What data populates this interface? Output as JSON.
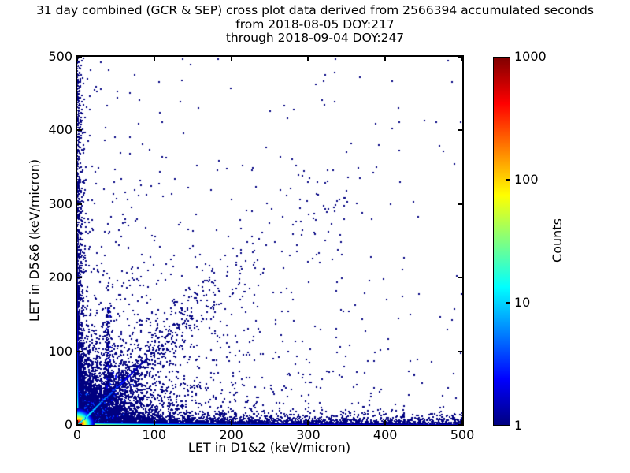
{
  "header": {
    "title_line1": "31 day combined (GCR & SEP) cross plot data derived from 2566394 accumulated seconds",
    "title_line2": "from 2018-08-05 DOY:217",
    "title_line3": "through 2018-09-04 DOY:247",
    "accumulated_seconds": 2566394,
    "period": {
      "from": "2018-08-05",
      "from_doy": 217,
      "through": "2018-09-04",
      "through_doy": 247
    }
  },
  "chart_data": {
    "type": "heatmap",
    "subtype": "2d-histogram cross plot rendered as colored 1-unit bins",
    "xlabel": "LET in D1&2 (keV/micron)",
    "ylabel": "LET in D5&6 (keV/micron)",
    "xlim": [
      0,
      500
    ],
    "ylim": [
      0,
      500
    ],
    "xticks": [
      0,
      100,
      200,
      300,
      400,
      500
    ],
    "yticks": [
      0,
      100,
      200,
      300,
      400,
      500
    ],
    "grid": false,
    "point_color_single_count": "#000080",
    "colorbar": {
      "label": "Counts",
      "scale": "log",
      "ticks": [
        1,
        10,
        100,
        1000
      ],
      "range": [
        1,
        1000
      ],
      "colormap": "jet",
      "stops_bottom_to_top": [
        "#000080",
        "#0000ff",
        "#0080ff",
        "#00ffff",
        "#80ff80",
        "#ffff00",
        "#ff8000",
        "#ff0000",
        "#800000"
      ]
    },
    "density_model": {
      "seed": 7,
      "bin_units": 1,
      "origin_blob": {
        "peak_counts": 1500,
        "radial_scale": 3.0,
        "extent": 26
      },
      "bottom_band": {
        "terms": [
          [
            700,
            5
          ],
          [
            45,
            55
          ],
          [
            4,
            250
          ]
        ],
        "baseline": 0.9,
        "rows": 3,
        "row_divisor": 3.5
      },
      "left_band": {
        "terms": [
          [
            500,
            4
          ],
          [
            25,
            30
          ],
          [
            2.5,
            150
          ]
        ],
        "baseline": 0.35,
        "cols": 2,
        "col_divisor": 3.5
      },
      "diagonal_core": {
        "peak_counts": 20,
        "scale": 25,
        "length": 90,
        "baseline": 0.6
      },
      "clusters": [
        {
          "type": "exp2d",
          "n": 5000,
          "xs": 28,
          "ys": 24,
          "bright_frac": 0.25,
          "bright_r": 45
        },
        {
          "type": "exp2d",
          "n": 1400,
          "xs": 130,
          "ys": 95,
          "bright_frac": 0.04,
          "bright_r": 60
        },
        {
          "type": "bandx",
          "n": 2600,
          "x_pow": 1.6,
          "y_scale": 4.5
        },
        {
          "type": "bandy",
          "n": 900,
          "y_pow": 2.2,
          "x_scale": 3.5
        },
        {
          "type": "diag",
          "n": 900,
          "t_scale": 80,
          "t_max": 320,
          "sigma_base": 3,
          "sigma_slope": 0.08,
          "bright_frac": 0.12
        },
        {
          "type": "vline",
          "n": 160,
          "x": 39,
          "x_sigma": 1.5,
          "y_min": 28,
          "y_max": 160
        },
        {
          "type": "uniform",
          "n": 150
        }
      ]
    }
  }
}
